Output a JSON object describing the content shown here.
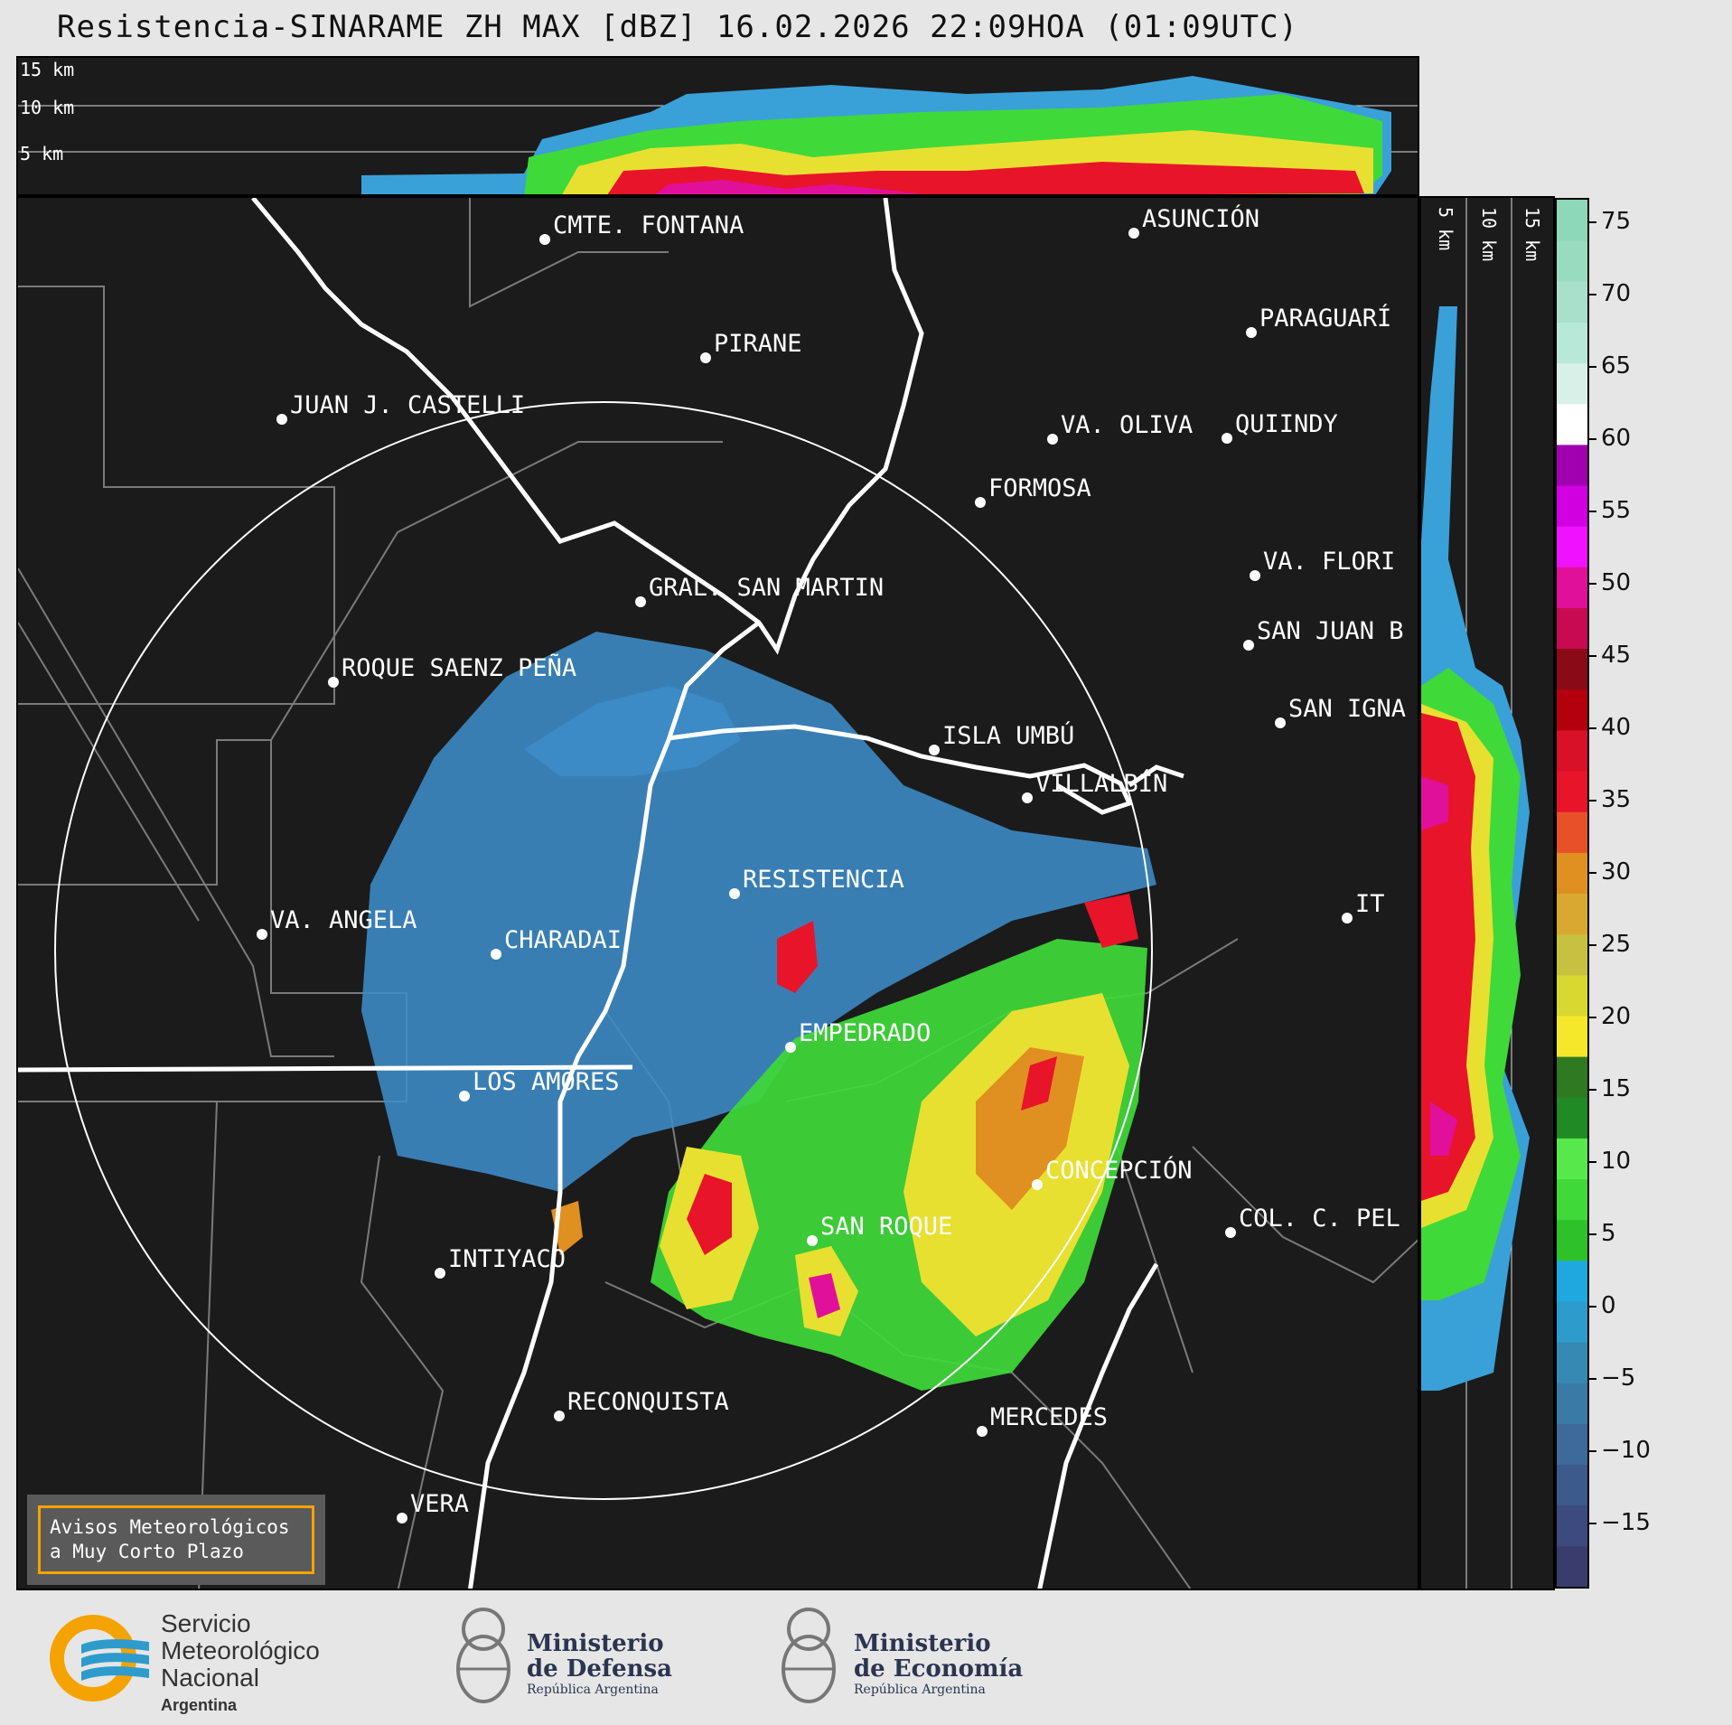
{
  "title": "Resistencia-SINARAME ZH MAX [dBZ] 16.02.2026 22:09HOA (01:09UTC)",
  "top_axis_labels": [
    "15 km",
    "10 km",
    "5 km"
  ],
  "side_axis_labels": [
    "5 km",
    "10 km",
    "15 km"
  ],
  "colorbar": {
    "ticks": [
      "75",
      "70",
      "65",
      "60",
      "55",
      "50",
      "45",
      "40",
      "35",
      "30",
      "25",
      "20",
      "15",
      "10",
      "5",
      "0",
      "−5",
      "−10",
      "−15"
    ],
    "colors": [
      "#3a3c6e",
      "#3d4a80",
      "#3c5a8c",
      "#3d6a98",
      "#3a7aa6",
      "#3589b3",
      "#2d9ccc",
      "#1fa8e0",
      "#2ec12a",
      "#3fd93a",
      "#57e84c",
      "#208a24",
      "#2f7a20",
      "#f5e82a",
      "#d8d830",
      "#c8c040",
      "#d9a830",
      "#e09020",
      "#e85028",
      "#e8142a",
      "#d81028",
      "#b4000e",
      "#8a0a18",
      "#c80a50",
      "#e0109a",
      "#f012ff",
      "#d000e0",
      "#a000b0",
      "#ffffff",
      "#d8f0e8",
      "#b8e8d8",
      "#a8e0cc",
      "#98dcc0",
      "#8cd8b8"
    ]
  },
  "cities": [
    {
      "name": "CMTE. FONTANA"
    },
    {
      "name": "ASUNCIÓN"
    },
    {
      "name": "PARAGUARÍ"
    },
    {
      "name": "PIRANE"
    },
    {
      "name": "JUAN J. CASTELLI"
    },
    {
      "name": "VA. OLIVA"
    },
    {
      "name": "QUIINDY"
    },
    {
      "name": "FORMOSA"
    },
    {
      "name": "VA. FLORI"
    },
    {
      "name": "GRAL. SAN MARTIN"
    },
    {
      "name": "SAN JUAN B"
    },
    {
      "name": "ROQUE SAENZ PEÑA"
    },
    {
      "name": "SAN IGNA"
    },
    {
      "name": "ISLA UMBÚ"
    },
    {
      "name": "VILLALBÍN"
    },
    {
      "name": "RESISTENCIA"
    },
    {
      "name": "VA. ANGELA"
    },
    {
      "name": "CHARADAI"
    },
    {
      "name": "IT"
    },
    {
      "name": "EMPEDRADO"
    },
    {
      "name": "LOS AMORES"
    },
    {
      "name": "CONCEPCIÓN"
    },
    {
      "name": "COL. C. PEL"
    },
    {
      "name": "SAN ROQUE"
    },
    {
      "name": "INTIYACO"
    },
    {
      "name": "RECONQUISTA"
    },
    {
      "name": "MERCEDES"
    },
    {
      "name": "VERA"
    }
  ],
  "alert": {
    "line1": "Avisos Meteorológicos",
    "line2": "a Muy Corto Plazo"
  },
  "footer": {
    "smn_line1": "Servicio",
    "smn_line2": "Meteorológico",
    "smn_line3": "Nacional",
    "smn_line4": "Argentina",
    "defensa_line1": "Ministerio",
    "defensa_line2": "de Defensa",
    "defensa_line3": "República Argentina",
    "economia_line1": "Ministerio",
    "economia_line2": "de Economía",
    "economia_line3": "República Argentina"
  }
}
